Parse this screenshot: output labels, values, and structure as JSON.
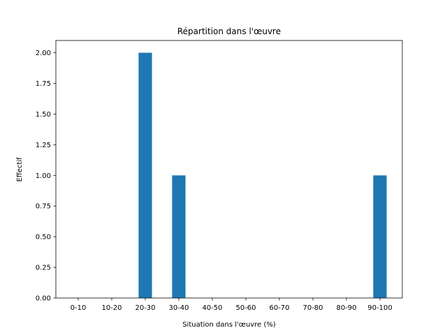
{
  "chart_data": {
    "type": "bar",
    "title": "Répartition dans l'œuvre",
    "xlabel": "Situation dans l'œuvre (%)",
    "ylabel": "Effectif",
    "categories": [
      "0-10",
      "10-20",
      "20-30",
      "30-40",
      "40-50",
      "50-60",
      "60-70",
      "70-80",
      "80-90",
      "90-100"
    ],
    "values": [
      0,
      0,
      2,
      1,
      0,
      0,
      0,
      0,
      0,
      1
    ],
    "ylim": [
      0,
      2.1
    ],
    "yticks": [
      "0.00",
      "0.25",
      "0.50",
      "0.75",
      "1.00",
      "1.25",
      "1.50",
      "1.75",
      "2.00"
    ],
    "grid": false,
    "bar_color": "#1f77b4"
  }
}
